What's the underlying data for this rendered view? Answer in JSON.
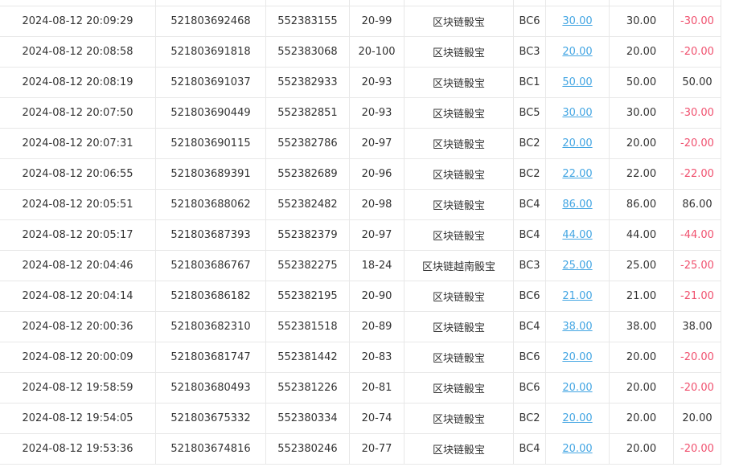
{
  "colors": {
    "link": "#44a6e3",
    "negative": "#f0506e"
  },
  "rows": [
    [
      "2024-08-12 20:09:29",
      "521803692468",
      "552383155",
      "20-99",
      "区块链骰宝",
      "BC6",
      "30.00",
      "30.00",
      "-30.00"
    ],
    [
      "2024-08-12 20:08:58",
      "521803691818",
      "552383068",
      "20-100",
      "区块链骰宝",
      "BC3",
      "20.00",
      "20.00",
      "-20.00"
    ],
    [
      "2024-08-12 20:08:19",
      "521803691037",
      "552382933",
      "20-93",
      "区块链骰宝",
      "BC1",
      "50.00",
      "50.00",
      "50.00"
    ],
    [
      "2024-08-12 20:07:50",
      "521803690449",
      "552382851",
      "20-93",
      "区块链骰宝",
      "BC5",
      "30.00",
      "30.00",
      "-30.00"
    ],
    [
      "2024-08-12 20:07:31",
      "521803690115",
      "552382786",
      "20-97",
      "区块链骰宝",
      "BC2",
      "20.00",
      "20.00",
      "-20.00"
    ],
    [
      "2024-08-12 20:06:55",
      "521803689391",
      "552382689",
      "20-96",
      "区块链骰宝",
      "BC2",
      "22.00",
      "22.00",
      "-22.00"
    ],
    [
      "2024-08-12 20:05:51",
      "521803688062",
      "552382482",
      "20-98",
      "区块链骰宝",
      "BC4",
      "86.00",
      "86.00",
      "86.00"
    ],
    [
      "2024-08-12 20:05:17",
      "521803687393",
      "552382379",
      "20-97",
      "区块链骰宝",
      "BC4",
      "44.00",
      "44.00",
      "-44.00"
    ],
    [
      "2024-08-12 20:04:46",
      "521803686767",
      "552382275",
      "18-24",
      "区块链越南骰宝",
      "BC3",
      "25.00",
      "25.00",
      "-25.00"
    ],
    [
      "2024-08-12 20:04:14",
      "521803686182",
      "552382195",
      "20-90",
      "区块链骰宝",
      "BC6",
      "21.00",
      "21.00",
      "-21.00"
    ],
    [
      "2024-08-12 20:00:36",
      "521803682310",
      "552381518",
      "20-89",
      "区块链骰宝",
      "BC4",
      "38.00",
      "38.00",
      "38.00"
    ],
    [
      "2024-08-12 20:00:09",
      "521803681747",
      "552381442",
      "20-83",
      "区块链骰宝",
      "BC6",
      "20.00",
      "20.00",
      "-20.00"
    ],
    [
      "2024-08-12 19:58:59",
      "521803680493",
      "552381226",
      "20-81",
      "区块链骰宝",
      "BC6",
      "20.00",
      "20.00",
      "-20.00"
    ],
    [
      "2024-08-12 19:54:05",
      "521803675332",
      "552380334",
      "20-74",
      "区块链骰宝",
      "BC2",
      "20.00",
      "20.00",
      "20.00"
    ],
    [
      "2024-08-12 19:53:36",
      "521803674816",
      "552380246",
      "20-77",
      "区块链骰宝",
      "BC4",
      "20.00",
      "20.00",
      "-20.00"
    ]
  ]
}
